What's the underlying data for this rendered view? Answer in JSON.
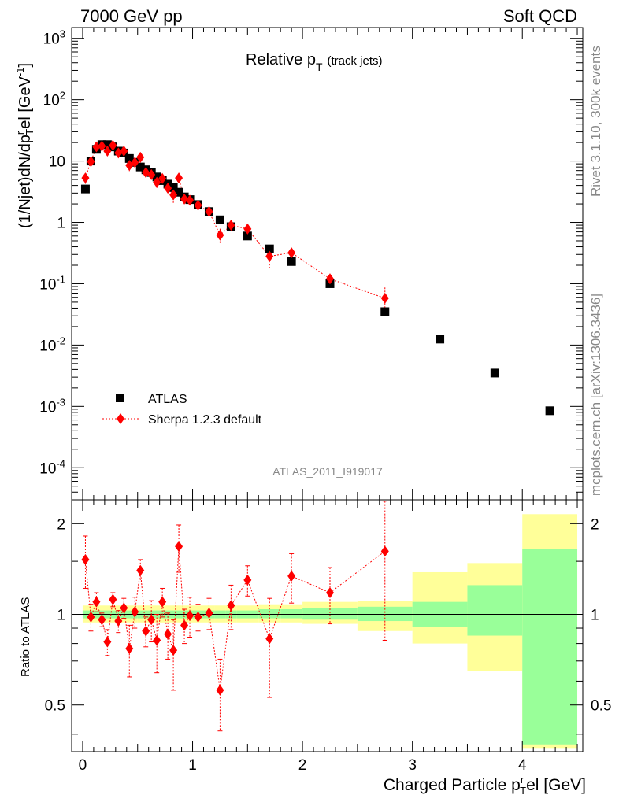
{
  "header": {
    "left": "7000 GeV pp",
    "right": "Soft QCD"
  },
  "side": {
    "rivet": "Rivet 3.1.10,  300k events",
    "mcplots": "mcplots.cern.ch [arXiv:1306.3436]"
  },
  "analysis_id": "ATLAS_2011_I919017",
  "title": {
    "main": "Relative p",
    "main_sub": "T",
    "small": "(track jets)"
  },
  "yaxis": {
    "label": "(1/Njet)dN/dp",
    "label_sup": "r",
    "label_sub": "T",
    "label_tail": "el [GeV",
    "label_unit_sup": "-1",
    "label_end": "]"
  },
  "xaxis": {
    "label_a": "Charged Particle p",
    "label_sup": "r",
    "label_sub": "T",
    "label_b": "el [GeV]"
  },
  "ratio_axis_label": "Ratio to ATLAS",
  "legend": {
    "atlas": "ATLAS",
    "sherpa": "Sherpa 1.2.3 default"
  },
  "colors": {
    "data": "#000000",
    "mc": "#ff0000",
    "band_inner": "#99ff99",
    "band_outer": "#ffff99"
  },
  "chart_data": [
    {
      "type": "scatter",
      "scale": "log-y",
      "xlim": [
        -0.1,
        4.55
      ],
      "ylim": [
        3e-05,
        1500
      ],
      "x_ticks": [
        "0",
        "1",
        "2",
        "3",
        "4"
      ],
      "y_ticks": [
        "10^-4",
        "10^-3",
        "10^-2",
        "10^-1",
        "1",
        "10",
        "10^2",
        "10^3"
      ],
      "series": [
        {
          "name": "ATLAS",
          "marker": "square",
          "x": [
            0.025,
            0.075,
            0.125,
            0.175,
            0.225,
            0.275,
            0.325,
            0.375,
            0.425,
            0.475,
            0.525,
            0.575,
            0.625,
            0.675,
            0.725,
            0.775,
            0.825,
            0.875,
            0.925,
            0.975,
            1.05,
            1.15,
            1.25,
            1.35,
            1.5,
            1.7,
            1.9,
            2.25,
            2.75,
            3.25,
            3.75,
            4.25
          ],
          "y": [
            3.5,
            10.0,
            15.5,
            18.5,
            18.5,
            17.0,
            14.5,
            13.5,
            11.0,
            9.5,
            8.0,
            7.2,
            6.5,
            5.5,
            4.8,
            4.2,
            3.7,
            3.1,
            2.6,
            2.35,
            1.95,
            1.5,
            1.1,
            0.85,
            0.6,
            0.37,
            0.23,
            0.1,
            0.035,
            0.0125,
            0.0035,
            0.00085
          ]
        },
        {
          "name": "Sherpa 1.2.3 default",
          "marker": "diamond",
          "x": [
            0.025,
            0.075,
            0.125,
            0.175,
            0.225,
            0.275,
            0.325,
            0.375,
            0.425,
            0.475,
            0.525,
            0.575,
            0.625,
            0.675,
            0.725,
            0.775,
            0.825,
            0.875,
            0.925,
            0.975,
            1.05,
            1.15,
            1.25,
            1.35,
            1.5,
            1.7,
            1.9,
            2.25,
            2.75
          ],
          "y": [
            5.3,
            9.8,
            17.0,
            17.5,
            14.5,
            18.0,
            13.5,
            14.5,
            8.5,
            9.5,
            11.5,
            6.5,
            6.0,
            4.5,
            5.2,
            3.6,
            2.8,
            5.3,
            2.4,
            2.3,
            1.9,
            1.5,
            0.62,
            0.9,
            0.78,
            0.28,
            0.32,
            0.12,
            0.058
          ]
        }
      ]
    },
    {
      "type": "line",
      "title": "Ratio to ATLAS",
      "scale": "log-y",
      "xlim": [
        -0.1,
        4.55
      ],
      "ylim": [
        0.35,
        2.4
      ],
      "y_ticks": [
        "0.5",
        "1",
        "2"
      ],
      "x_ticks": [
        "0",
        "1",
        "2",
        "3",
        "4"
      ],
      "ratio_x": [
        0.025,
        0.075,
        0.125,
        0.175,
        0.225,
        0.275,
        0.325,
        0.375,
        0.425,
        0.475,
        0.525,
        0.575,
        0.625,
        0.675,
        0.725,
        0.775,
        0.825,
        0.875,
        0.925,
        0.975,
        1.05,
        1.15,
        1.25,
        1.35,
        1.5,
        1.7,
        1.9,
        2.25,
        2.75
      ],
      "ratio_y": [
        1.52,
        0.98,
        1.1,
        0.96,
        0.81,
        1.12,
        0.95,
        1.05,
        0.77,
        1.02,
        1.4,
        0.88,
        0.96,
        0.82,
        1.1,
        0.86,
        0.76,
        1.68,
        0.92,
        0.99,
        0.98,
        1.01,
        0.56,
        1.07,
        1.3,
        0.83,
        1.34,
        1.18,
        1.62
      ],
      "ratio_err_up": [
        0.3,
        0.1,
        0.08,
        0.05,
        0.08,
        0.06,
        0.08,
        0.08,
        0.15,
        0.12,
        0.12,
        0.1,
        0.15,
        0.18,
        0.12,
        0.15,
        0.2,
        0.3,
        0.12,
        0.15,
        0.1,
        0.12,
        0.15,
        0.18,
        0.15,
        0.3,
        0.25,
        0.25,
        0.8
      ],
      "ratio_err_dn": [
        0.3,
        0.1,
        0.08,
        0.05,
        0.08,
        0.06,
        0.08,
        0.08,
        0.15,
        0.12,
        0.12,
        0.1,
        0.15,
        0.18,
        0.12,
        0.15,
        0.2,
        0.3,
        0.12,
        0.15,
        0.1,
        0.12,
        0.15,
        0.18,
        0.15,
        0.3,
        0.25,
        0.25,
        0.8
      ],
      "bands": {
        "edges": [
          0,
          0.5,
          1,
          1.1,
          1.2,
          1.3,
          1.4,
          1.6,
          1.8,
          2,
          2.5,
          3,
          3.5,
          4,
          4.5
        ],
        "inner_lo": [
          0.97,
          0.97,
          0.97,
          0.97,
          0.97,
          0.97,
          0.97,
          0.97,
          0.97,
          0.96,
          0.95,
          0.91,
          0.85,
          0.37
        ],
        "inner_hi": [
          1.03,
          1.03,
          1.03,
          1.03,
          1.03,
          1.03,
          1.03,
          1.04,
          1.04,
          1.05,
          1.06,
          1.1,
          1.25,
          1.65
        ],
        "outer_lo": [
          0.94,
          0.94,
          0.94,
          0.94,
          0.94,
          0.94,
          0.94,
          0.94,
          0.94,
          0.93,
          0.88,
          0.8,
          0.65,
          0.36
        ],
        "outer_hi": [
          1.07,
          1.07,
          1.07,
          1.07,
          1.07,
          1.07,
          1.07,
          1.08,
          1.08,
          1.1,
          1.11,
          1.38,
          1.48,
          2.15
        ]
      }
    }
  ]
}
